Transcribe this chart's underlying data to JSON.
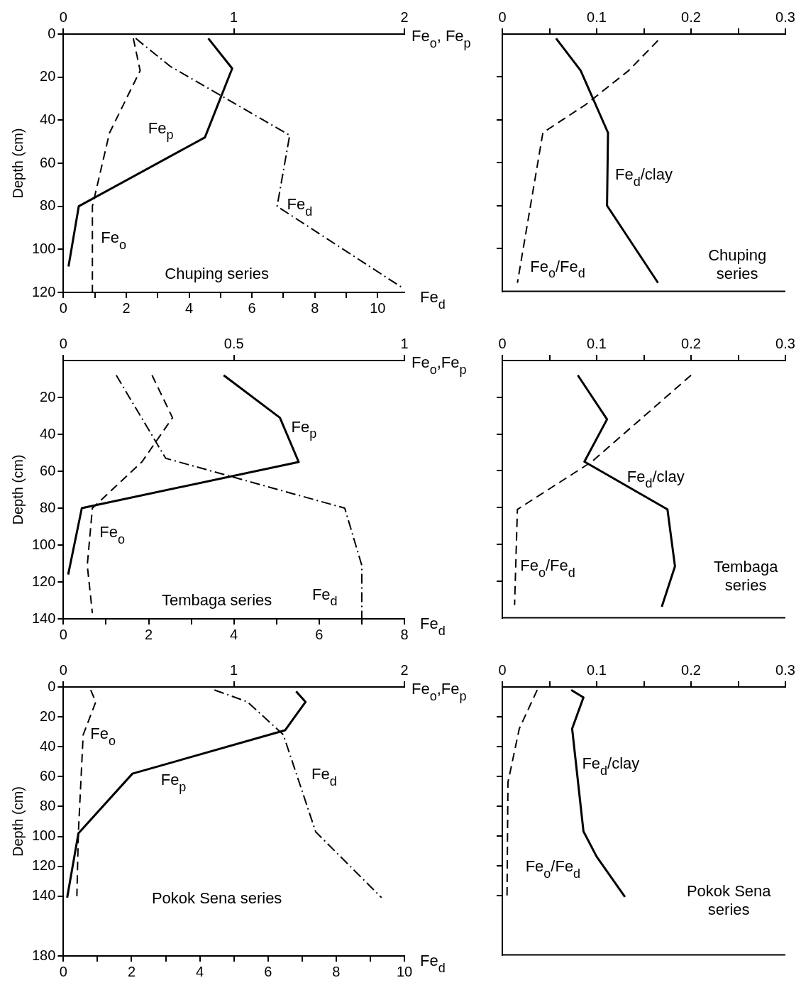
{
  "chart_data": [
    {
      "type": "line",
      "ylabel": "Depth (cm)",
      "xlabel": "Fe$_{d}$",
      "x2label": "Fe$_{o}$, Fe$_{p}$",
      "annotations": [
        "Chuping series"
      ],
      "xlim": [
        0,
        10.85
      ],
      "xticks": [
        0,
        {
          "value": 1,
          "label": null
        },
        2,
        {
          "value": 3,
          "label": null
        },
        4,
        {
          "value": 5,
          "label": null
        },
        6,
        {
          "value": 7,
          "label": null
        },
        8,
        {
          "value": 9,
          "label": null
        },
        10
      ],
      "x2lim": [
        0,
        2
      ],
      "x2ticks": [
        0,
        1,
        2
      ],
      "ylim": [
        120,
        0
      ],
      "yticks": [
        0,
        20,
        40,
        60,
        80,
        100,
        120
      ],
      "grid": false,
      "legend": false,
      "marker": "none",
      "series": [
        {
          "name": "Fe$_{p}$",
          "color": "#000000",
          "axis": "x2",
          "line_style": "solid",
          "x": [
            0.85,
            0.99,
            0.83,
            0.09,
            0.03
          ],
          "values": [
            2,
            16,
            48,
            80,
            108
          ]
        },
        {
          "name": "Fe$_{o}$",
          "color": "#000000",
          "axis": "x2",
          "line_style": "dashed",
          "x": [
            0.41,
            0.45,
            0.27,
            0.17,
            0.17
          ],
          "values": [
            2,
            17,
            46,
            80,
            120
          ]
        },
        {
          "name": "Fe$_{d}$",
          "color": "#000000",
          "line_style": "dashdot",
          "x": [
            2.3,
            3.4,
            7.2,
            6.8,
            10.8
          ],
          "values": [
            2,
            15,
            47,
            80,
            118
          ]
        }
      ]
    },
    {
      "type": "line",
      "annotations": [
        "Chuping series"
      ],
      "xlim": [
        0,
        0.3
      ],
      "xticks": [
        0,
        {
          "value": 0.05,
          "label": null
        },
        0.1,
        {
          "value": 0.15,
          "label": null
        },
        0.2,
        {
          "value": 0.25,
          "label": null
        },
        0.3
      ],
      "ylim": [
        120,
        0
      ],
      "yticks": [
        {
          "value": 20,
          "label": null
        },
        {
          "value": 40,
          "label": null
        },
        {
          "value": 60,
          "label": null
        },
        {
          "value": 80,
          "label": null
        },
        {
          "value": 100,
          "label": null
        }
      ],
      "tick_labels": "x",
      "grid": false,
      "legend": false,
      "marker": "none",
      "series": [
        {
          "name": "Fe$_{d}$/clay",
          "color": "#000000",
          "line_style": "solid",
          "x": [
            0.057,
            0.083,
            0.112,
            0.111,
            0.165
          ],
          "values": [
            2,
            17,
            46,
            80,
            116
          ]
        },
        {
          "name": "Fe$_{o}$/Fe$_{d}$",
          "color": "#000000",
          "line_style": "dashed",
          "x": [
            0.165,
            0.134,
            0.088,
            0.043,
            0.016
          ],
          "values": [
            3,
            17,
            33,
            46,
            116
          ]
        }
      ]
    },
    {
      "type": "line",
      "ylabel": "Depth (cm)",
      "xlabel": "Fe$_{d}$",
      "x2label": "Fe$_{o}$,Fe$_{p}$",
      "annotations": [
        "Tembaga series"
      ],
      "xlim": [
        0,
        8
      ],
      "xticks": [
        0,
        {
          "value": 1,
          "label": null
        },
        2,
        {
          "value": 3,
          "label": null
        },
        4,
        {
          "value": 5,
          "label": null
        },
        6,
        {
          "value": 7,
          "label": null
        },
        8
      ],
      "x2lim": [
        0,
        1
      ],
      "x2ticks": [
        0,
        0.5,
        1
      ],
      "ylim": [
        140,
        0
      ],
      "yticks": [
        20,
        40,
        60,
        80,
        100,
        120,
        140
      ],
      "grid": false,
      "legend": false,
      "marker": "none",
      "series": [
        {
          "name": "Fe$_{p}$",
          "color": "#000000",
          "axis": "x2",
          "line_style": "solid",
          "x": [
            0.47,
            0.635,
            0.69,
            0.054,
            0.014
          ],
          "values": [
            8,
            31,
            55,
            80,
            116
          ]
        },
        {
          "name": "Fe$_{o}$",
          "color": "#000000",
          "axis": "x2",
          "line_style": "dashed",
          "x": [
            0.26,
            0.32,
            0.23,
            0.085,
            0.07,
            0.085
          ],
          "values": [
            8,
            31,
            55,
            80,
            111,
            137
          ]
        },
        {
          "name": "Fe$_{d}$",
          "color": "#000000",
          "line_style": "dashdot",
          "x": [
            1.24,
            2.4,
            6.6,
            7.0,
            7.0
          ],
          "values": [
            8,
            53,
            80,
            111,
            140
          ]
        }
      ]
    },
    {
      "type": "line",
      "annotations": [
        "Tembaga series"
      ],
      "xlim": [
        0,
        0.3
      ],
      "xticks": [
        0,
        {
          "value": 0.05,
          "label": null
        },
        0.1,
        {
          "value": 0.15,
          "label": null
        },
        0.2,
        {
          "value": 0.25,
          "label": null
        },
        0.3
      ],
      "ylim": [
        140,
        0
      ],
      "yticks": [
        {
          "value": 20,
          "label": null
        },
        {
          "value": 40,
          "label": null
        },
        {
          "value": 60,
          "label": null
        },
        {
          "value": 80,
          "label": null
        },
        {
          "value": 100,
          "label": null
        },
        {
          "value": 120,
          "label": null
        }
      ],
      "tick_labels": "x",
      "grid": false,
      "legend": false,
      "marker": "none",
      "series": [
        {
          "name": "Fe$_{d}$/clay",
          "color": "#000000",
          "line_style": "solid",
          "x": [
            0.08,
            0.111,
            0.087,
            0.175,
            0.183,
            0.169
          ],
          "values": [
            8,
            32,
            55,
            81,
            112,
            134
          ]
        },
        {
          "name": "Fe$_{o}$/Fe$_{d}$",
          "color": "#000000",
          "line_style": "dashed",
          "x": [
            0.2,
            0.095,
            0.016,
            0.013
          ],
          "values": [
            8,
            55,
            81,
            133
          ]
        }
      ]
    },
    {
      "type": "line",
      "ylabel": "Depth (cm)",
      "xlabel": "Fe$_{d}$",
      "x2label": "Fe$_{o}$,Fe$_{p}$",
      "annotations": [
        "Pokok Sena series"
      ],
      "xlim": [
        0,
        10
      ],
      "xticks": [
        0,
        {
          "value": 1,
          "label": null
        },
        2,
        {
          "value": 3,
          "label": null
        },
        4,
        {
          "value": 5,
          "label": null
        },
        6,
        {
          "value": 7,
          "label": null
        },
        8,
        {
          "value": 9,
          "label": null
        },
        10
      ],
      "x2lim": [
        0,
        2
      ],
      "x2ticks": [
        0,
        1,
        2
      ],
      "ylim": [
        180,
        0
      ],
      "yticks": [
        0,
        20,
        40,
        60,
        80,
        100,
        120,
        140,
        180
      ],
      "grid": false,
      "legend": false,
      "marker": "none",
      "series": [
        {
          "name": "Fe$_{p}$",
          "color": "#000000",
          "axis": "x2",
          "line_style": "solid",
          "x": [
            1.365,
            1.42,
            1.3,
            0.405,
            0.088,
            0.022
          ],
          "values": [
            3,
            10,
            29,
            58,
            98,
            141
          ]
        },
        {
          "name": "Fe$_{o}$",
          "color": "#000000",
          "axis": "x2",
          "line_style": "dashed",
          "x": [
            0.16,
            0.19,
            0.116,
            0.088,
            0.079
          ],
          "values": [
            2,
            10,
            32,
            97,
            140
          ]
        },
        {
          "name": "Fe$_{d}$",
          "color": "#000000",
          "line_style": "dashdot",
          "x": [
            4.43,
            5.4,
            6.45,
            7.4,
            9.33
          ],
          "values": [
            2,
            10,
            32,
            97,
            141
          ]
        }
      ]
    },
    {
      "type": "line",
      "annotations": [
        "Pokok Sena series"
      ],
      "xlim": [
        0,
        0.3
      ],
      "xticks": [
        0,
        {
          "value": 0.05,
          "label": null
        },
        0.1,
        {
          "value": 0.15,
          "label": null
        },
        0.2,
        {
          "value": 0.25,
          "label": null
        },
        0.3
      ],
      "ylim": [
        180,
        0
      ],
      "yticks": [
        {
          "value": 20,
          "label": null
        },
        {
          "value": 40,
          "label": null
        },
        {
          "value": 60,
          "label": null
        },
        {
          "value": 80,
          "label": null
        },
        {
          "value": 100,
          "label": null
        },
        {
          "value": 120,
          "label": null
        },
        {
          "value": 140,
          "label": null
        }
      ],
      "tick_labels": "x",
      "grid": false,
      "legend": false,
      "marker": "none",
      "series": [
        {
          "name": "Fe$_{d}$/clay",
          "color": "#000000",
          "line_style": "solid",
          "x": [
            0.073,
            0.086,
            0.074,
            0.086,
            0.1,
            0.13
          ],
          "values": [
            2,
            7,
            28,
            97,
            114,
            141
          ]
        },
        {
          "name": "Fe$_{o}$/Fe$_{d}$",
          "color": "#000000",
          "line_style": "dashed",
          "x": [
            0.037,
            0.018,
            0.006,
            0.005
          ],
          "values": [
            2,
            28,
            64,
            140
          ]
        }
      ]
    }
  ]
}
